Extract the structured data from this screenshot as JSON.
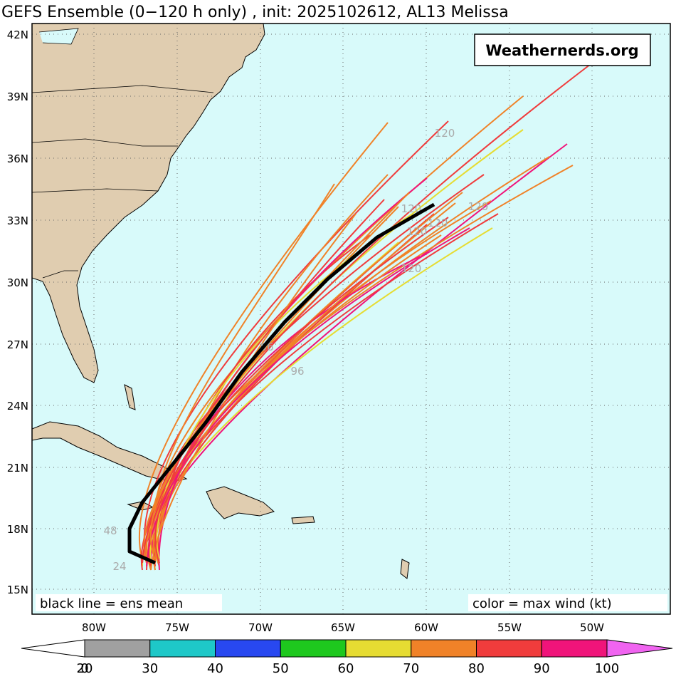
{
  "title": "GEFS Ensemble (0−120 h only) , init: 2025102612, AL13 Melissa",
  "watermark": "Weathernerds.org",
  "notes": {
    "left": "black line = ens mean",
    "right": "color = max wind (kt)"
  },
  "lat_labels": [
    "42N",
    "39N",
    "36N",
    "33N",
    "30N",
    "27N",
    "24N",
    "21N",
    "18N",
    "15N"
  ],
  "lon_labels": [
    "80W",
    "75W",
    "70W",
    "65W",
    "60W",
    "55W",
    "50W"
  ],
  "track_labels": [
    "120",
    "120",
    "120",
    "120",
    "120",
    "120",
    "96",
    "96",
    "48",
    "24"
  ],
  "colorbar": {
    "ticks": [
      0,
      20,
      30,
      40,
      50,
      60,
      70,
      80,
      90,
      100
    ],
    "colors": [
      "#a0a0a0",
      "#1ec8c8",
      "#2848f0",
      "#1ec81e",
      "#e6dc32",
      "#f08228",
      "#f03c3c",
      "#f0147a"
    ],
    "under_color": "#ffffff",
    "over_color": "#f064f0"
  }
}
